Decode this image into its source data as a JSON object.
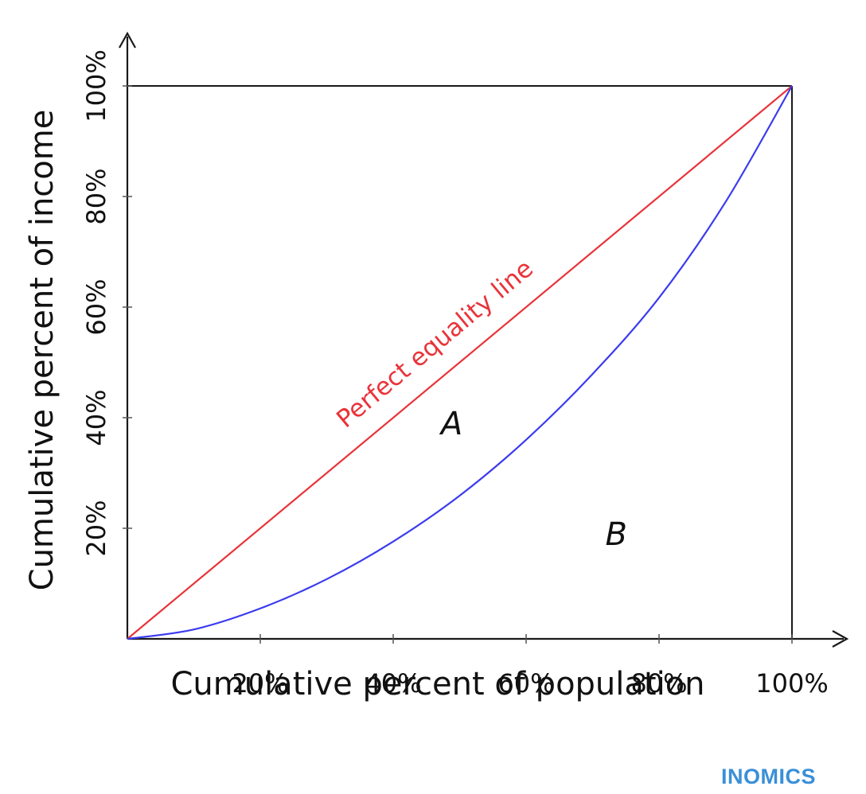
{
  "chart_data": {
    "type": "line",
    "xlabel": "Cumulative percent of population",
    "ylabel": "Cumulative percent of income",
    "xlim": [
      0,
      100
    ],
    "ylim": [
      0,
      100
    ],
    "x_ticks": [
      "20%",
      "40%",
      "60%",
      "80%",
      "100%"
    ],
    "y_ticks": [
      "20%",
      "40%",
      "60%",
      "80%",
      "100%"
    ],
    "grid": false,
    "series": [
      {
        "name": "Perfect equality line",
        "color": "#e8343a",
        "x": [
          0,
          100
        ],
        "y": [
          0,
          100
        ]
      },
      {
        "color": "#3b3bf0",
        "x": [
          0,
          10,
          20,
          30,
          40,
          50,
          60,
          70,
          80,
          90,
          100
        ],
        "y": [
          0,
          1.7,
          5.5,
          10.8,
          17.6,
          25.9,
          36,
          47.9,
          61.7,
          79,
          100
        ]
      }
    ],
    "annotations": [
      {
        "text": "A",
        "x": 50,
        "y": 39
      },
      {
        "text": "B",
        "x": 75,
        "y": 19
      }
    ]
  },
  "watermark": {
    "text": "INOMICS",
    "color": "#3a8fd8"
  }
}
